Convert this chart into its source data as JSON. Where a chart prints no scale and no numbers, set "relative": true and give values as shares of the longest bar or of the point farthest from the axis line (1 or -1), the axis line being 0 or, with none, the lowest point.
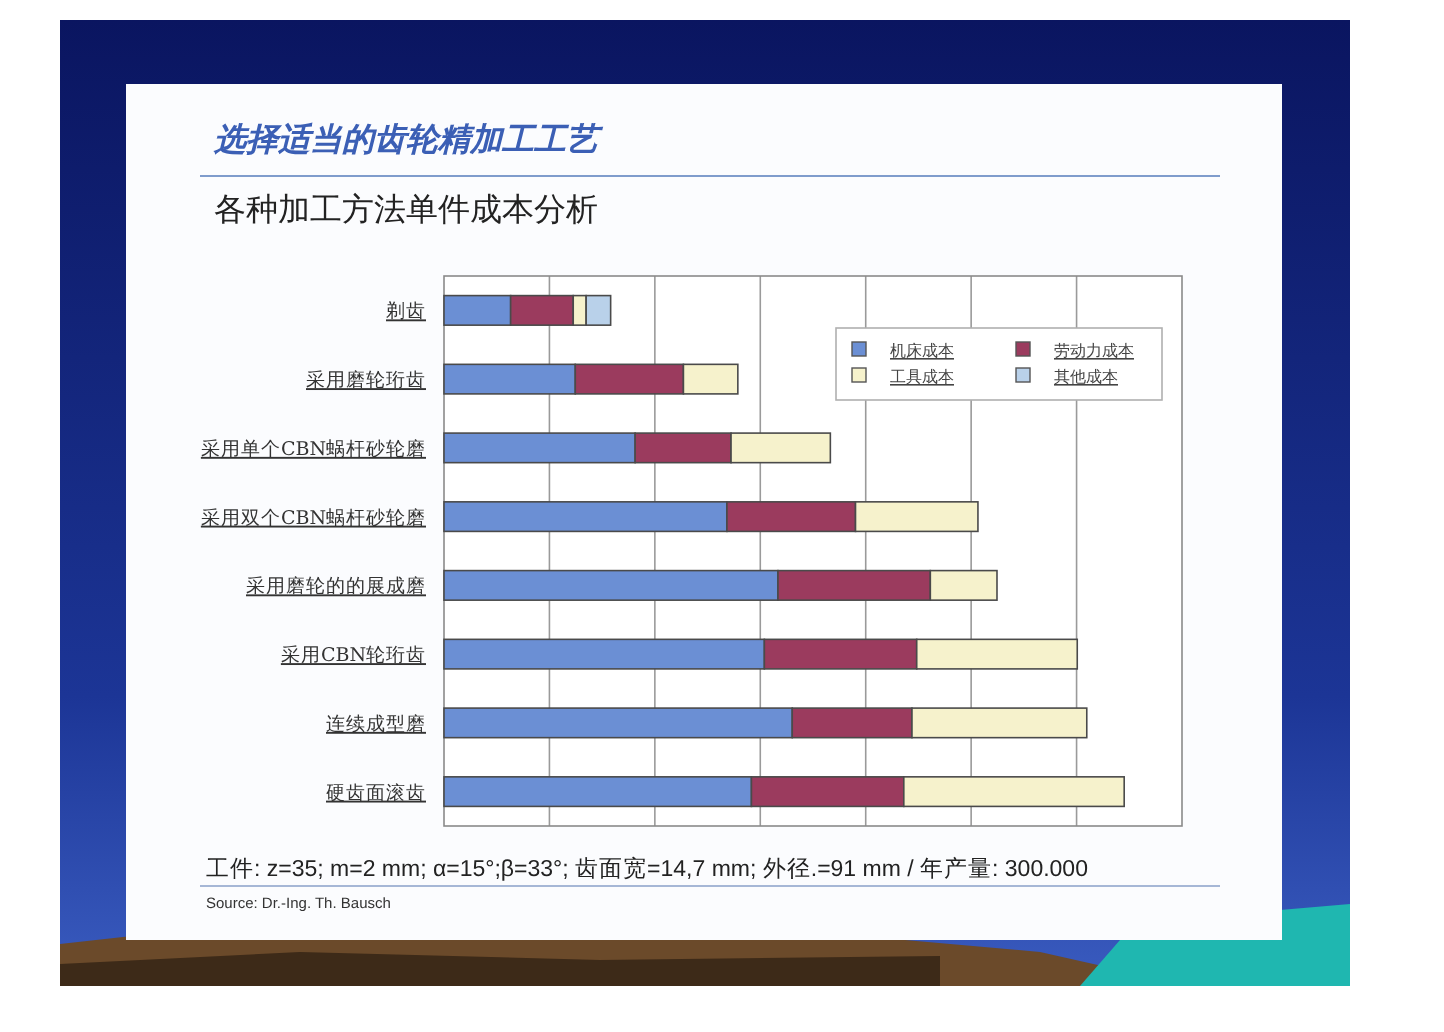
{
  "chart_data": {
    "type": "bar",
    "orientation": "horizontal",
    "stacked": true,
    "relative": true,
    "title": "选择适当的齿轮精加工工艺",
    "subtitle": "各种加工方法单件成本分析",
    "categories": [
      "剃齿",
      "采用磨轮珩齿",
      "采用单个CBN蜗杆砂轮磨",
      "采用双个CBN蜗杆砂轮磨",
      "采用磨轮的的展成磨",
      "采用CBN轮珩齿",
      "连续成型磨",
      "硬齿面滚齿"
    ],
    "series": [
      {
        "name": "机床成本",
        "color": "#6b8fd4",
        "values": [
          0.098,
          0.193,
          0.281,
          0.416,
          0.491,
          0.471,
          0.512,
          0.452
        ]
      },
      {
        "name": "劳动力成本",
        "color": "#9b3b5e",
        "values": [
          0.092,
          0.159,
          0.141,
          0.189,
          0.224,
          0.224,
          0.176,
          0.224
        ]
      },
      {
        "name": "工具成本",
        "color": "#f6f2cc",
        "values": [
          0.019,
          0.08,
          0.146,
          0.18,
          0.098,
          0.236,
          0.257,
          0.324
        ]
      },
      {
        "name": "其他成本",
        "color": "#b9d1ea",
        "values": [
          0.036,
          null,
          null,
          null,
          null,
          null,
          null,
          null
        ]
      }
    ],
    "legend": "top right",
    "grid": "x",
    "annotations": [
      "工件: z=35; m=2 mm; α=15°;β=33°; 齿面宽=14,7 mm; 外径.=91 mm / 年产量: 300.000",
      "Source: Dr.-Ing. Th. Bausch"
    ]
  }
}
